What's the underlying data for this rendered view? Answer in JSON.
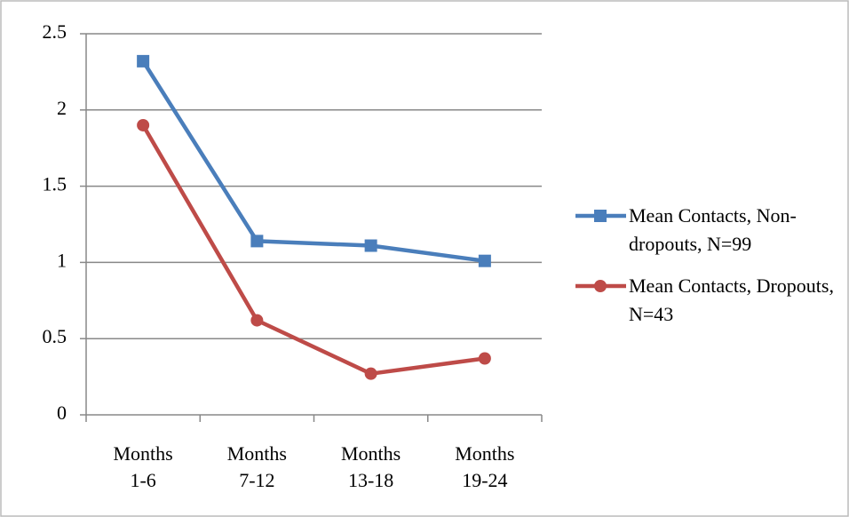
{
  "chart_data": {
    "type": "line",
    "categories": [
      "Months 1-6",
      "Months 7-12",
      "Months 13-18",
      "Months 19-24"
    ],
    "series": [
      {
        "name": "Mean Contacts, Non-dropouts, N=99",
        "color": "#4a7ebb",
        "marker": "square",
        "values": [
          2.32,
          1.14,
          1.11,
          1.01
        ]
      },
      {
        "name": "Mean Contacts, Dropouts, N=43",
        "color": "#be4b48",
        "marker": "circle",
        "values": [
          1.9,
          0.62,
          0.27,
          0.37
        ]
      }
    ],
    "ylim": [
      0,
      2.5
    ],
    "yticks": [
      0,
      0.5,
      1,
      1.5,
      2,
      2.5
    ],
    "grid": true,
    "legend": "right"
  }
}
